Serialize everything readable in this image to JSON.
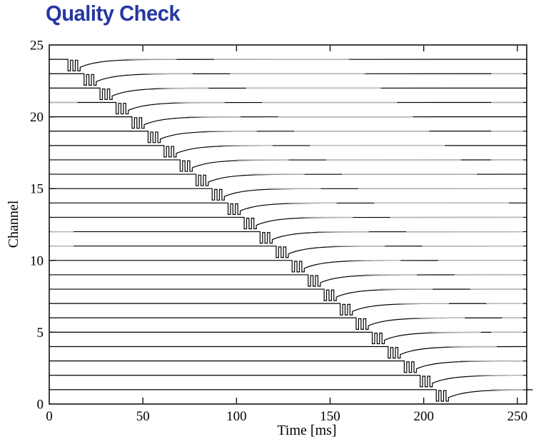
{
  "title": {
    "text": "Quality Check",
    "color": "#2737a0"
  },
  "page": {
    "background": "#ffffff"
  },
  "chart_data": {
    "type": "line",
    "title": "Quality Check",
    "xlabel": "Time [ms]",
    "ylabel": "Channel",
    "xlim": [
      0,
      255
    ],
    "ylim": [
      0,
      25
    ],
    "xticks": [
      0,
      50,
      100,
      150,
      200,
      250
    ],
    "yticks": [
      0,
      5,
      10,
      15,
      20,
      25
    ],
    "grid": false,
    "legend": "none",
    "n_channels": 24,
    "description": "24 stacked channel traces, one per channel offset 1 unit apart. Each trace is flat at its channel level, then shows a burst of 3 narrow rectangular downward pulses followed by an exponential recovery back to baseline. Burst onset is staggered ~8.55 ms per channel, from channel 24 (top, ~10 ms) to channel 1 (bottom, ~207 ms).",
    "channels": [
      {
        "channel": 24,
        "burst_start_ms": 10.0
      },
      {
        "channel": 23,
        "burst_start_ms": 18.6
      },
      {
        "channel": 22,
        "burst_start_ms": 27.1
      },
      {
        "channel": 21,
        "burst_start_ms": 35.7
      },
      {
        "channel": 20,
        "burst_start_ms": 44.2
      },
      {
        "channel": 19,
        "burst_start_ms": 52.8
      },
      {
        "channel": 18,
        "burst_start_ms": 61.3
      },
      {
        "channel": 17,
        "burst_start_ms": 69.9
      },
      {
        "channel": 16,
        "burst_start_ms": 78.4
      },
      {
        "channel": 15,
        "burst_start_ms": 87.0
      },
      {
        "channel": 14,
        "burst_start_ms": 95.5
      },
      {
        "channel": 13,
        "burst_start_ms": 104.1
      },
      {
        "channel": 12,
        "burst_start_ms": 112.6
      },
      {
        "channel": 11,
        "burst_start_ms": 121.2
      },
      {
        "channel": 10,
        "burst_start_ms": 129.7
      },
      {
        "channel": 9,
        "burst_start_ms": 138.3
      },
      {
        "channel": 8,
        "burst_start_ms": 146.8
      },
      {
        "channel": 7,
        "burst_start_ms": 155.4
      },
      {
        "channel": 6,
        "burst_start_ms": 163.9
      },
      {
        "channel": 5,
        "burst_start_ms": 172.5
      },
      {
        "channel": 4,
        "burst_start_ms": 181.0
      },
      {
        "channel": 3,
        "burst_start_ms": 189.6
      },
      {
        "channel": 2,
        "burst_start_ms": 198.1
      },
      {
        "channel": 1,
        "burst_start_ms": 206.7
      }
    ],
    "waveform": {
      "pulse_count": 3,
      "pulse_width_ms": 1.3,
      "pulse_gap_ms": 1.3,
      "pulse_depth": 0.8,
      "inter_pulse_level": -0.06,
      "recovery_start_depth": 0.55,
      "recovery_tau_ms": 10
    },
    "artifacts": {
      "note": "some flat line stretches render light gray in the source image",
      "leading_gray": [
        {
          "channel": 21,
          "until_ms": 15
        },
        {
          "channel": 12,
          "until_ms": 13
        },
        {
          "channel": 11,
          "until_ms": 13
        }
      ],
      "tail_gray_relative_ms": [
        [
          30,
          58
        ],
        [
          78,
          150
        ]
      ],
      "right_edge_gray_ms": [
        236,
        253
      ]
    },
    "colors": {
      "trace": "#000000",
      "faded_trace": "#b8b8b8",
      "axis": "#000000",
      "text": "#000000"
    }
  }
}
